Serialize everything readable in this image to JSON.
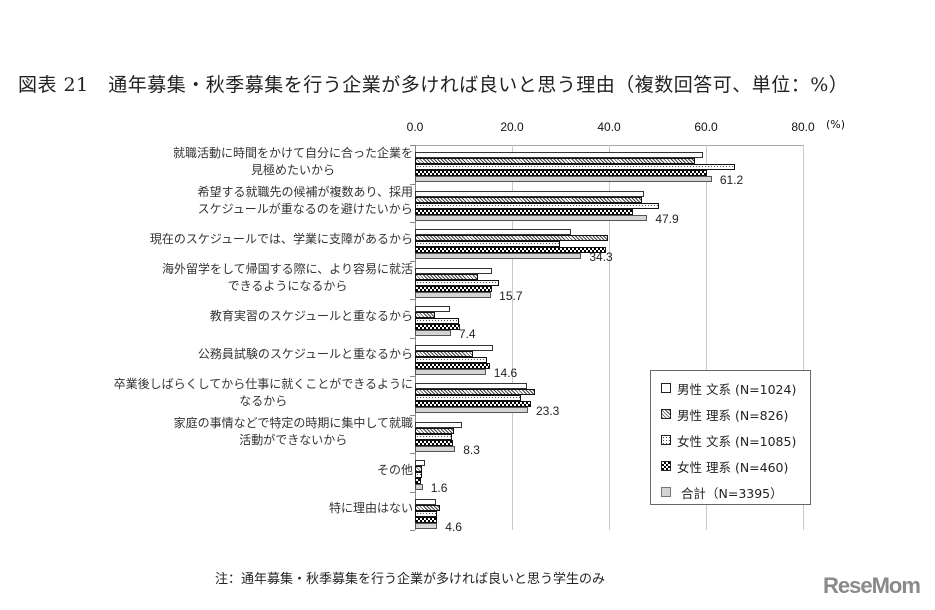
{
  "title": "図表 21　通年募集・秋季募集を行う企業が多ければ良いと思う理由（複数回答可、単位：%）",
  "axis": {
    "ticks": [
      "0.0",
      "20.0",
      "40.0",
      "60.0",
      "80.0"
    ],
    "unit": "(%)"
  },
  "legend": {
    "items": [
      {
        "label": "男性 文系 (N=1024)",
        "pattern": "white"
      },
      {
        "label": "男性 理系 (N=826)",
        "pattern": "diagonal-hatch"
      },
      {
        "label": "女性 文系 (N=1085)",
        "pattern": "dots"
      },
      {
        "label": "女性 理系 (N=460)",
        "pattern": "checker"
      },
      {
        "label": "合計（N=3395）",
        "pattern": "gray"
      }
    ]
  },
  "categories": [
    {
      "lines": [
        "就職活動に時間をかけて自分に合った企業を",
        "見極めたいから"
      ],
      "total_label": "61.2"
    },
    {
      "lines": [
        "希望する就職先の候補が複数あり、採用",
        "スケジュールが重なるのを避けたいから"
      ],
      "total_label": "47.9"
    },
    {
      "lines": [
        "現在のスケジュールでは、学業に支障があるから"
      ],
      "total_label": "34.3"
    },
    {
      "lines": [
        "海外留学をして帰国する際に、より容易に就活",
        "できるようになるから"
      ],
      "total_label": "15.7"
    },
    {
      "lines": [
        "教育実習のスケジュールと重なるから"
      ],
      "total_label": "7.4"
    },
    {
      "lines": [
        "公務員試験のスケジュールと重なるから"
      ],
      "total_label": "14.6"
    },
    {
      "lines": [
        "卒業後しばらくしてから仕事に就くことができるように",
        "なるから"
      ],
      "total_label": "23.3"
    },
    {
      "lines": [
        "家庭の事情などで特定の時期に集中して就職",
        "活動ができないから"
      ],
      "total_label": "8.3"
    },
    {
      "lines": [
        "その他"
      ],
      "total_label": "1.6"
    },
    {
      "lines": [
        "特に理由はない"
      ],
      "total_label": "4.6"
    }
  ],
  "note": "注：通年募集・秋季募集を行う企業が多ければ良いと思う学生のみ",
  "logo": "ReseMom",
  "chart_data": {
    "type": "bar",
    "orientation": "horizontal",
    "title": "図表 21　通年募集・秋季募集を行う企業が多ければ良いと思う理由（複数回答可、単位：%）",
    "xlabel": "(%)",
    "ylabel": "",
    "xlim": [
      0,
      80
    ],
    "xticks": [
      0,
      20,
      40,
      60,
      80
    ],
    "grid": true,
    "legend_position": "lower right inside",
    "categories": [
      "就職活動に時間をかけて自分に合った企業を見極めたいから",
      "希望する就職先の候補が複数あり、採用スケジュールが重なるのを避けたいから",
      "現在のスケジュールでは、学業に支障があるから",
      "海外留学をして帰国する際に、より容易に就活できるようになるから",
      "教育実習のスケジュールと重なるから",
      "公務員試験のスケジュールと重なるから",
      "卒業後しばらくしてから仕事に就くことができるようになるから",
      "家庭の事情などで特定の時期に集中して就職活動ができないから",
      "その他",
      "特に理由はない"
    ],
    "series": [
      {
        "name": "男性 文系 (N=1024)",
        "values": [
          59.4,
          47.2,
          32.2,
          15.9,
          7.2,
          16.1,
          23.1,
          9.7,
          2.1,
          4.3
        ]
      },
      {
        "name": "男性 理系 (N=826)",
        "values": [
          57.7,
          46.8,
          39.8,
          13.0,
          4.1,
          12.0,
          24.7,
          8.0,
          1.4,
          5.2
        ]
      },
      {
        "name": "女性 文系 (N=1085)",
        "values": [
          66.0,
          50.3,
          29.9,
          17.3,
          9.1,
          14.8,
          21.9,
          7.6,
          1.4,
          4.5
        ]
      },
      {
        "name": "女性 理系 (N=460)",
        "values": [
          60.2,
          45.0,
          39.4,
          15.9,
          9.3,
          15.5,
          23.9,
          7.8,
          1.2,
          4.5
        ]
      },
      {
        "name": "合計（N=3395）",
        "values": [
          61.2,
          47.9,
          34.3,
          15.7,
          7.4,
          14.6,
          23.3,
          8.3,
          1.6,
          4.6
        ]
      }
    ],
    "data_labels": {
      "series": "合計（N=3395）",
      "values": [
        "61.2",
        "47.9",
        "34.3",
        "15.7",
        "7.4",
        "14.6",
        "23.3",
        "8.3",
        "1.6",
        "4.6"
      ]
    },
    "note": "注：通年募集・秋季募集を行う企業が多ければ良いと思う学生のみ"
  }
}
